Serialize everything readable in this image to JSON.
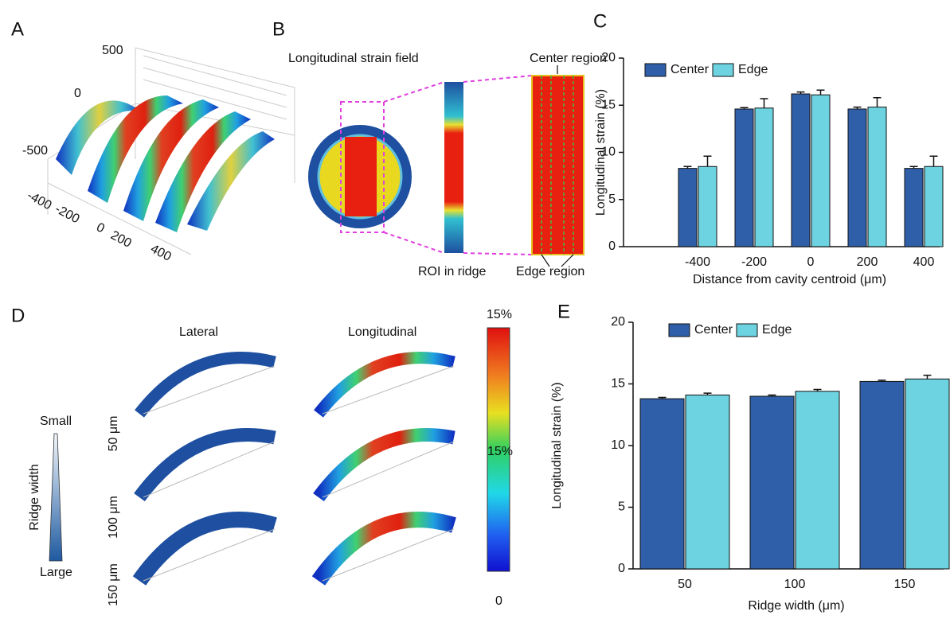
{
  "panel_a": {
    "label": "A",
    "z_ticks": [
      "500",
      "0",
      "-500"
    ],
    "x_ticks": [
      "-400",
      "-200",
      "0",
      "200",
      "400"
    ]
  },
  "panel_b": {
    "label": "B",
    "title": "Longitudinal strain field",
    "roi_label": "ROI in ridge",
    "center_label": "Center region",
    "edge_label": "Edge region"
  },
  "panel_d": {
    "label": "D",
    "col_lateral": "Lateral",
    "col_longitudinal": "Longitudinal",
    "colorbar_max": "15%",
    "colorbar_mid": "15%",
    "colorbar_min": "0",
    "width_small": "Small",
    "width_large": "Large",
    "width_title": "Ridge width",
    "rows": [
      "50 μm",
      "100 μm",
      "150 μm"
    ]
  },
  "chart_data": [
    {
      "type": "bar",
      "panel_label": "C",
      "xlabel": "Distance from cavity centroid  (μm)",
      "ylabel": "Longitudinal strain (%)",
      "categories": [
        "-400",
        "-200",
        "0",
        "200",
        "400"
      ],
      "series": [
        {
          "name": "Center",
          "color": "#2f5fa8",
          "values": [
            8.3,
            14.6,
            16.2,
            14.6,
            8.3
          ],
          "errors": [
            0.2,
            0.15,
            0.2,
            0.2,
            0.2
          ]
        },
        {
          "name": "Edge",
          "color": "#6dd3e0",
          "values": [
            8.5,
            14.7,
            16.1,
            14.8,
            8.5
          ],
          "errors": [
            1.1,
            1.0,
            0.5,
            1.0,
            1.1
          ]
        }
      ],
      "ylim": [
        0,
        20
      ],
      "yticks": [
        0,
        5,
        10,
        15,
        20
      ],
      "legend": "top-left"
    },
    {
      "type": "bar",
      "panel_label": "E",
      "xlabel": "Ridge width (μm)",
      "ylabel": "Longitudinal strain (%)",
      "categories": [
        "50",
        "100",
        "150"
      ],
      "series": [
        {
          "name": "Center",
          "color": "#2f5fa8",
          "values": [
            13.8,
            14.0,
            15.2
          ],
          "errors": [
            0.1,
            0.1,
            0.1
          ]
        },
        {
          "name": "Edge",
          "color": "#6dd3e0",
          "values": [
            14.1,
            14.4,
            15.4
          ],
          "errors": [
            0.15,
            0.15,
            0.3
          ]
        }
      ],
      "ylim": [
        0,
        20
      ],
      "yticks": [
        0,
        5,
        10,
        15,
        20
      ],
      "legend": "top-left"
    }
  ]
}
